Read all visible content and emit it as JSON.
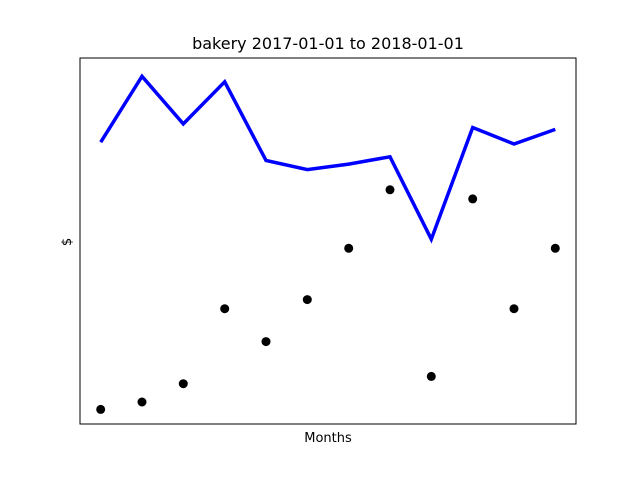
{
  "chart_data": {
    "type": "line",
    "title": "bakery 2017-01-01 to 2018-01-01",
    "xlabel": "Months",
    "ylabel": "$",
    "x": [
      1,
      2,
      3,
      4,
      5,
      6,
      7,
      8,
      9,
      10,
      11,
      12
    ],
    "xlim": [
      0.5,
      12.5
    ],
    "ylim": [
      0,
      100
    ],
    "grid": false,
    "xticks_visible": false,
    "yticks_visible": false,
    "series": [
      {
        "type": "line",
        "color": "#0000ff",
        "values": [
          77,
          95,
          82,
          93.5,
          72,
          69.5,
          71,
          73,
          50.5,
          81,
          76.5,
          80.5
        ]
      },
      {
        "type": "scatter",
        "color": "#000000",
        "values": [
          4,
          6,
          11,
          31.5,
          22.5,
          34,
          48,
          64,
          13,
          61.5,
          31.5,
          48
        ]
      }
    ]
  }
}
